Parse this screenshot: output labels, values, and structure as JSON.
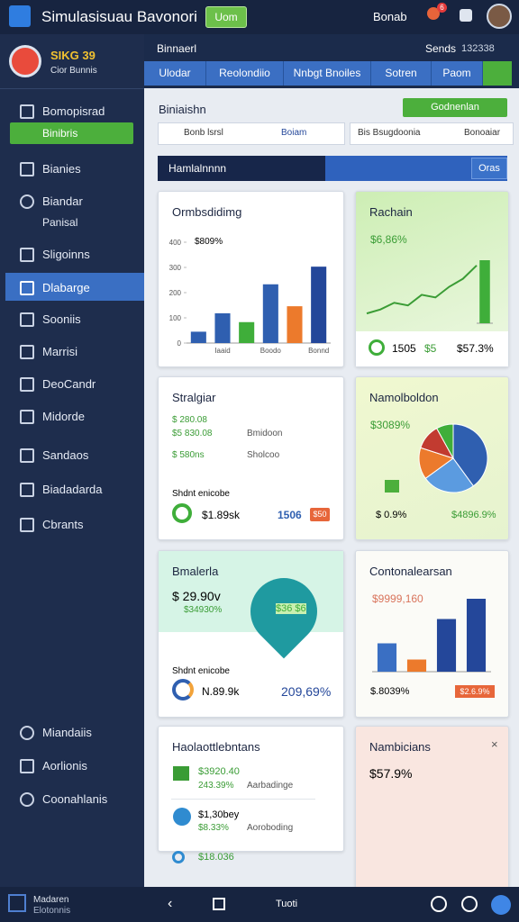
{
  "header": {
    "title": "Simulasisuau Bavonori",
    "button": "Uom",
    "user": "Bonab",
    "badge": "6"
  },
  "profile": {
    "name": "SIKG 39",
    "subtitle": "Cior Bunnis"
  },
  "nav": [
    "Bomopisrad",
    "Binibris",
    "Bianies",
    "Biandar",
    "Panisal",
    "Sligoinns",
    "Dlabarge",
    "Sooniis",
    "Marrisi",
    "DeoCandr",
    "Midorde",
    "Sandaos",
    "Biadadarda",
    "Cbrants"
  ],
  "nav_bottom": [
    "Miandaiis",
    "Aorlionis",
    "Coonahlanis"
  ],
  "topbar": {
    "title": "Binnaerl",
    "status": "Sends",
    "code": "132338"
  },
  "tabs": [
    "Ulodar",
    "Reolondiio",
    "Nnbgt Bnoiles",
    "Sotren",
    "Paom"
  ],
  "section": {
    "title": "Biniaishn",
    "button": "Godnenlan",
    "input1": "Bonb lsrsl",
    "input1_value": "Boiam",
    "input2": "Bis Bsugdoonia",
    "input2_value": "Bonoaiar"
  },
  "banner": {
    "title": "Hamlalnnnn",
    "button": "Oras"
  },
  "cards": [
    {
      "title": "Ormbsdidimg",
      "label": "$809%",
      "chart": {
        "type": "bar",
        "categories": [
          null,
          "Iaaid",
          null,
          "Boodo",
          null,
          "Bonnd"
        ],
        "values": [
          45,
          118,
          83,
          233,
          146,
          303
        ],
        "colors": [
          "#2f5fb0",
          "#2f5fb0",
          "#3fae3a",
          "#2f5fb0",
          "#ec7a2c",
          "#24479a"
        ],
        "ylim": [
          0,
          400
        ],
        "yticks": [
          0,
          100,
          200,
          300,
          400
        ]
      }
    },
    {
      "title": "Rachain",
      "label": "$6,86%",
      "chart": {
        "type": "line",
        "values": [
          12,
          18,
          28,
          24,
          40,
          36,
          52,
          64,
          84
        ],
        "ylim": [
          0,
          100
        ],
        "color": "#3a9c35"
      },
      "chart2": {
        "type": "bar",
        "values": [
          70
        ],
        "ylim": [
          0,
          100
        ],
        "colors": [
          "#3fae3a"
        ]
      },
      "stat1": "1505",
      "stat2": "$5",
      "stat3": "$57.3%"
    },
    {
      "title": "Stralgiar",
      "items": [
        "$ 280.08",
        "$5 830.08",
        "$ 580ns",
        "Bmidoon",
        "Sholcoo"
      ],
      "sub": "Shdnt enicobe",
      "value": "$1.89sk",
      "stat": "1506",
      "badge": "$50"
    },
    {
      "title": "Namolboldon",
      "label": "$3089%",
      "chart": {
        "type": "pie",
        "values": [
          40,
          25,
          15,
          12,
          8
        ],
        "colors": [
          "#2f5fb0",
          "#5b9be0",
          "#ec7a2c",
          "#c23b30",
          "#3fae3a"
        ]
      },
      "stat1": "$ 0.9%",
      "stat2": "$4896.9%"
    },
    {
      "title": "Bmalerla",
      "label": "$ 29.90v",
      "label2": "$34930%",
      "bubble": "$36 $6",
      "sub": "Shdnt enicobe",
      "value": "N.89.9k",
      "stat": "209,69%"
    },
    {
      "title": "Contonalearsan",
      "label": "$9999,160",
      "chart": {
        "type": "bar",
        "values": [
          35,
          15,
          65,
          90
        ],
        "colors": [
          "#3a6fc3",
          "#ec7a2c",
          "#24479a",
          "#24479a"
        ],
        "ylim": [
          0,
          100
        ]
      },
      "stat1": "$.8039%",
      "stat2": "$2.6.9%"
    },
    {
      "title": "Haolaottlebntans",
      "rows": [
        {
          "value": "$3920.40",
          "pct": "243.39%",
          "name": "Aarbadinge"
        },
        {
          "value": "$1,30bey",
          "pct": "$8.33%",
          "name": "Aoroboding"
        }
      ],
      "more": "$18.036"
    },
    {
      "title": "Nambicians",
      "label": "$57.9%"
    }
  ],
  "footer": {
    "title": "Madaren",
    "subtitle": "Elotonnis",
    "label": "Tuoti"
  }
}
